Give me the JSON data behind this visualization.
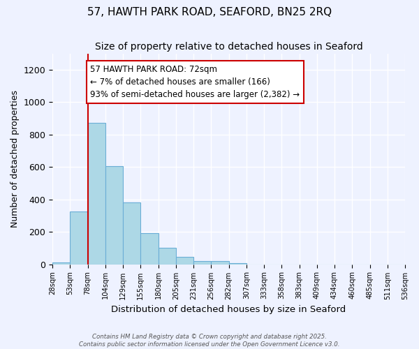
{
  "title": "57, HAWTH PARK ROAD, SEAFORD, BN25 2RQ",
  "subtitle": "Size of property relative to detached houses in Seaford",
  "xlabel": "Distribution of detached houses by size in Seaford",
  "ylabel": "Number of detached properties",
  "bar_color": "#add8e6",
  "bar_edge_color": "#6baed6",
  "bar_heights": [
    10,
    325,
    870,
    605,
    380,
    190,
    100,
    45,
    20,
    20,
    5,
    0,
    0,
    0,
    0,
    0,
    0,
    0,
    0,
    0
  ],
  "bin_labels": [
    "28sqm",
    "53sqm",
    "78sqm",
    "104sqm",
    "129sqm",
    "155sqm",
    "180sqm",
    "205sqm",
    "231sqm",
    "256sqm",
    "282sqm",
    "307sqm",
    "333sqm",
    "358sqm",
    "383sqm",
    "409sqm",
    "434sqm",
    "460sqm",
    "485sqm",
    "511sqm",
    "536sqm"
  ],
  "ylim": [
    0,
    1300
  ],
  "yticks": [
    0,
    200,
    400,
    600,
    800,
    1000,
    1200
  ],
  "property_line_x": 2,
  "property_line_color": "#cc0000",
  "annotation_text": "57 HAWTH PARK ROAD: 72sqm\n← 7% of detached houses are smaller (166)\n93% of semi-detached houses are larger (2,382) →",
  "annotation_box_color": "#ffffff",
  "annotation_box_edge_color": "#cc0000",
  "annotation_fontsize": 8.5,
  "title_fontsize": 11,
  "subtitle_fontsize": 10,
  "footer_text": "Contains HM Land Registry data © Crown copyright and database right 2025.\nContains public sector information licensed under the Open Government Licence v3.0.",
  "background_color": "#eef2ff",
  "grid_color": "#ffffff"
}
